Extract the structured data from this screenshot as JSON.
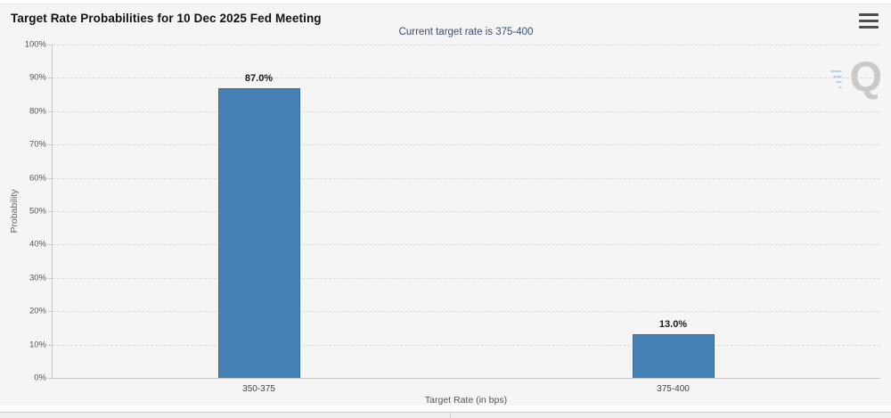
{
  "menu": {
    "icon": "hamburger-icon"
  },
  "watermark": {
    "text": "Q"
  },
  "chart_data": {
    "type": "bar",
    "title": "Target Rate Probabilities for 10 Dec 2025 Fed Meeting",
    "subtitle": "Current target rate is 375-400",
    "categories": [
      "350-375",
      "375-400"
    ],
    "values": [
      87.0,
      13.0
    ],
    "value_labels": [
      "87.0%",
      "13.0%"
    ],
    "xlabel": "Target Rate (in bps)",
    "ylabel": "Probability",
    "ylim": [
      0,
      100
    ],
    "ytick_step": 10,
    "ytick_labels": [
      "0%",
      "10%",
      "20%",
      "30%",
      "40%",
      "50%",
      "60%",
      "70%",
      "80%",
      "90%",
      "100%"
    ],
    "grid": "horizontal-dashed",
    "legend": "none",
    "colors": {
      "bar_fill": "#4581b5",
      "bar_border": "#3a6d9c",
      "grid_line": "#d9d9d9",
      "axis_line": "#c6c6c6",
      "title_text": "#111111",
      "subtitle_text": "#3e4c74",
      "tick_text": "#555555",
      "panel_bg": "#f5f5f6"
    }
  }
}
